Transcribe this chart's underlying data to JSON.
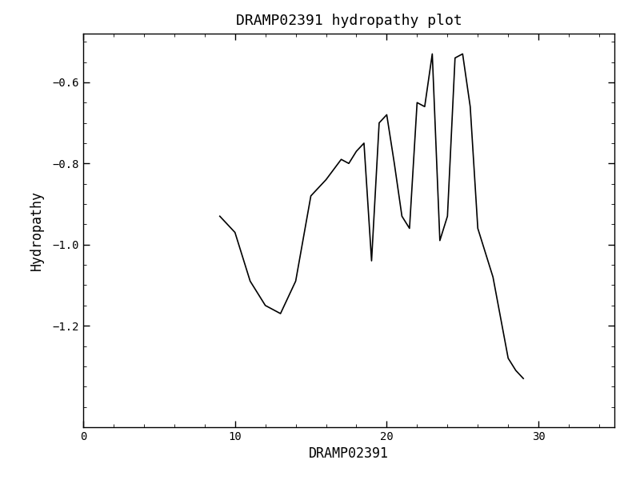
{
  "title": "DRAMP02391 hydropathy plot",
  "xlabel": "DRAMP02391",
  "ylabel": "Hydropathy",
  "xlim": [
    0,
    35
  ],
  "ylim": [
    -1.45,
    -0.48
  ],
  "xticks": [
    0,
    10,
    20,
    30
  ],
  "yticks": [
    -1.2,
    -1.0,
    -0.8,
    -0.6
  ],
  "line_color": "#000000",
  "line_width": 1.2,
  "background_color": "#ffffff",
  "x": [
    9,
    10,
    11,
    11.5,
    12,
    12.5,
    13,
    14,
    15,
    16,
    17,
    17.5,
    18,
    18.5,
    19,
    19.5,
    20,
    20.5,
    21,
    21.5,
    22,
    22.5,
    23,
    23.5,
    24,
    24.5,
    25,
    25.5,
    26,
    27,
    28,
    28.5,
    29
  ],
  "y": [
    -0.93,
    -0.97,
    -1.09,
    -1.12,
    -1.15,
    -1.16,
    -1.17,
    -1.09,
    -0.88,
    -0.84,
    -0.79,
    -0.8,
    -0.77,
    -0.75,
    -1.04,
    -0.7,
    -0.68,
    -0.8,
    -0.93,
    -0.96,
    -0.65,
    -0.66,
    -0.53,
    -0.99,
    -0.93,
    -0.54,
    -0.53,
    -0.66,
    -0.96,
    -1.08,
    -1.28,
    -1.31,
    -1.33
  ]
}
